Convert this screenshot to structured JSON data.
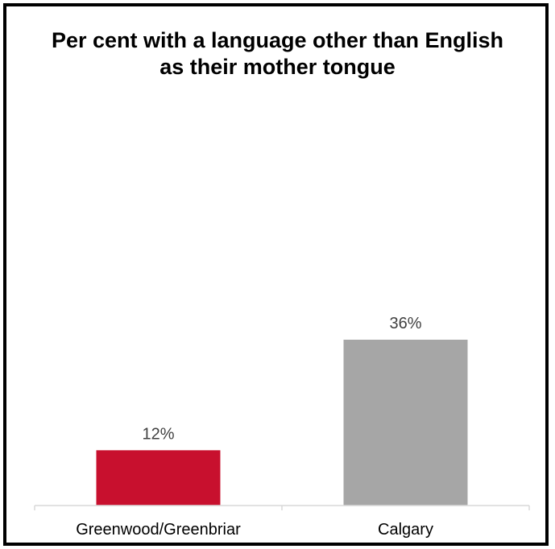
{
  "chart_data": {
    "type": "bar",
    "title": "Per cent with a language other than English as their mother tongue",
    "categories": [
      "Greenwood/Greenbriar",
      "Calgary"
    ],
    "values": [
      12,
      36
    ],
    "data_labels": [
      "12%",
      "36%"
    ],
    "colors": [
      "#c8102e",
      "#a6a6a6"
    ],
    "xlabel": "",
    "ylabel": "",
    "ylim": [
      0,
      36
    ],
    "grid": false,
    "legend": "none",
    "y_axis_visible": false
  }
}
